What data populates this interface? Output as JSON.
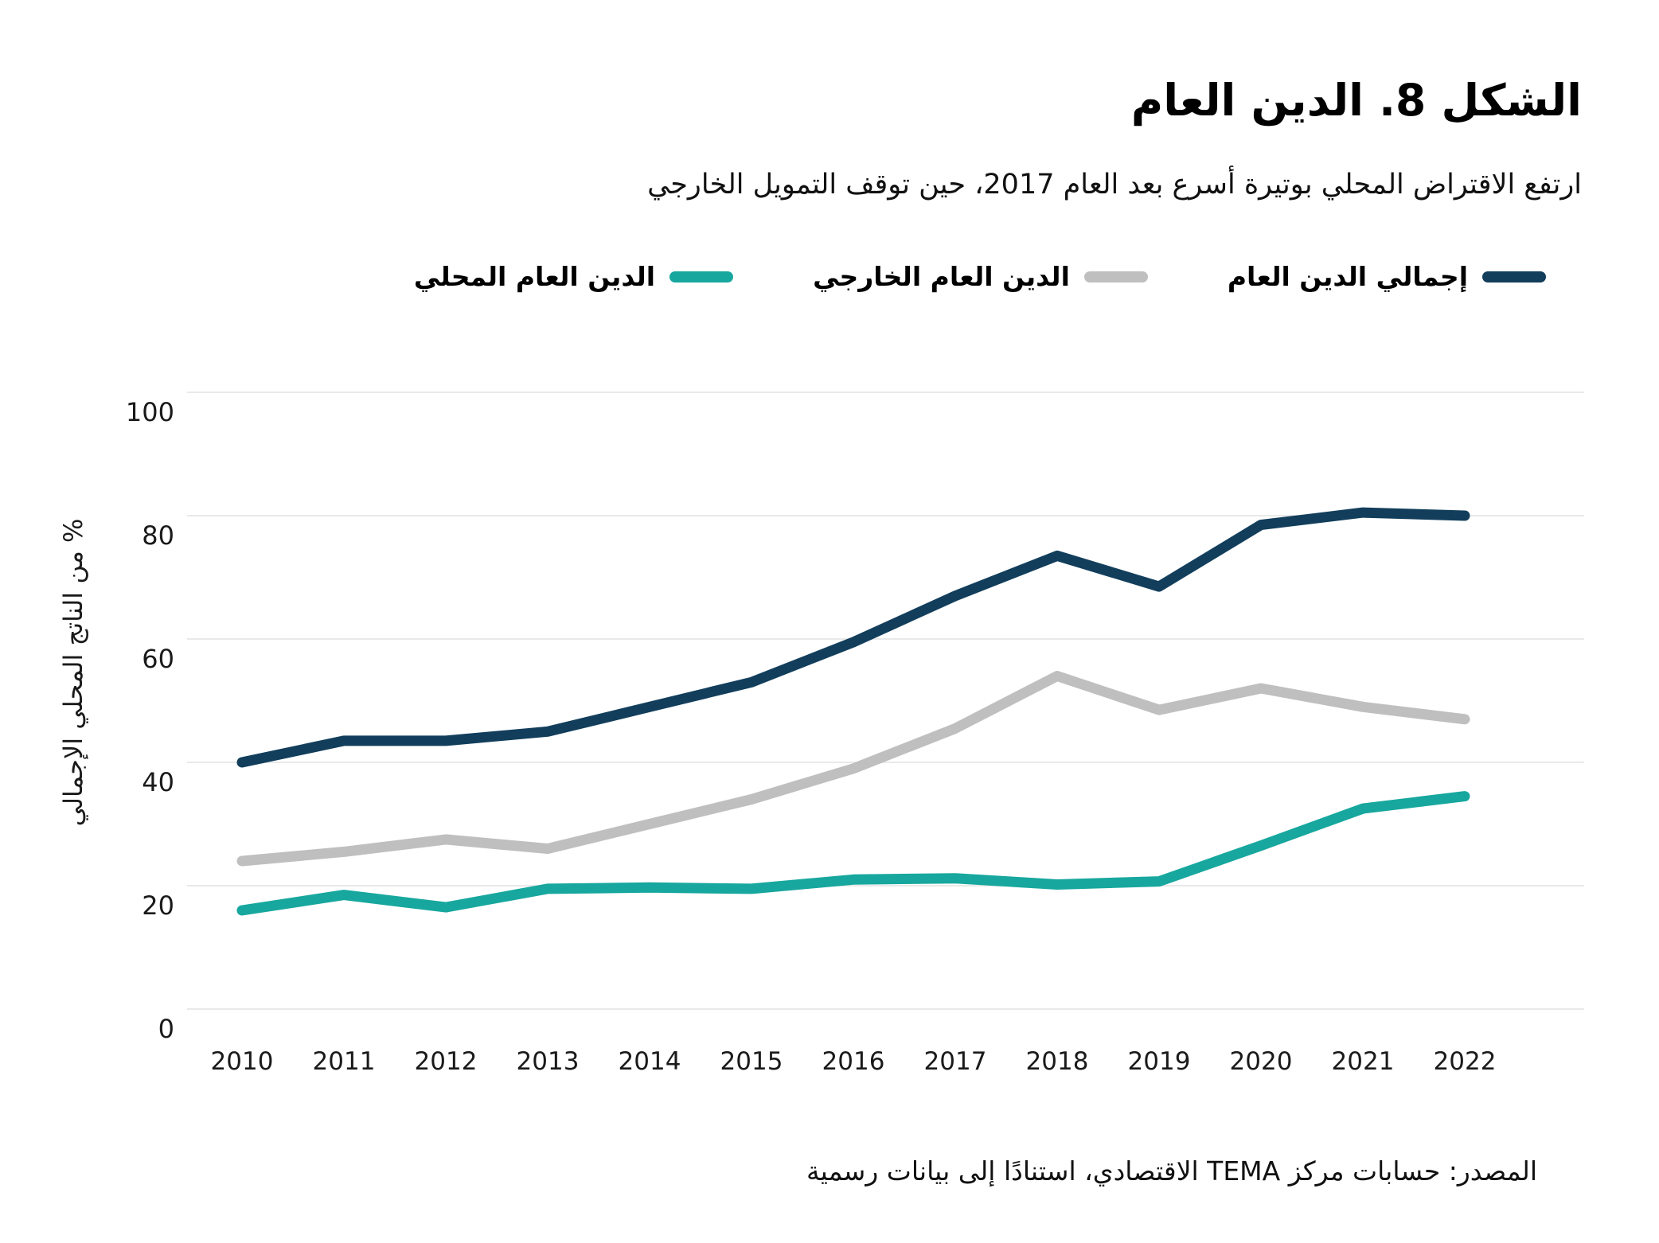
{
  "title": "الشكل 8. الدين العام",
  "subtitle": "ارتفع الاقتراض المحلي بوتيرة أسرع بعد العام 2017، حين توقف التمويل الخارجي",
  "source": "المصدر: حسابات مركز TEMA الاقتصادي، استنادًا إلى بيانات رسمية",
  "chart_data": {
    "type": "line",
    "title": "الشكل 8. الدين العام",
    "subtitle": "ارتفع الاقتراض المحلي بوتيرة أسرع بعد العام 2017، حين توقف التمويل الخارجي",
    "categories": [
      "2010",
      "2011",
      "2012",
      "2013",
      "2014",
      "2015",
      "2016",
      "2017",
      "2018",
      "2019",
      "2020",
      "2021",
      "2022"
    ],
    "series": [
      {
        "key": "total-public-debt",
        "name": "إجمالي الدين العام",
        "color": "#123e5c",
        "values": [
          40,
          43.5,
          43.5,
          45,
          49,
          53,
          59.5,
          67,
          73.5,
          68.5,
          78.5,
          80.5,
          80
        ]
      },
      {
        "key": "external-public-debt",
        "name": "الدين العام الخارجي",
        "color": "#bfbfbf",
        "values": [
          24,
          25.5,
          27.5,
          26,
          30,
          34,
          39,
          45.5,
          54,
          48.5,
          52,
          49,
          47
        ]
      },
      {
        "key": "domestic-public-debt",
        "name": "الدين العام المحلي",
        "color": "#17a79e",
        "values": [
          16,
          18.5,
          16.5,
          19.5,
          19.7,
          19.5,
          21,
          21.2,
          20.2,
          20.7,
          26.5,
          32.5,
          34.5
        ]
      }
    ],
    "xlabel": "",
    "ylabel": "% من الناتج المحلي الإجمالي",
    "ylim": [
      0,
      100
    ],
    "yticks": [
      0,
      20,
      40,
      60,
      80,
      100
    ],
    "grid": true,
    "legend_position": "top",
    "source": "المصدر: حسابات مركز TEMA الاقتصادي، استنادًا إلى بيانات رسمية"
  }
}
